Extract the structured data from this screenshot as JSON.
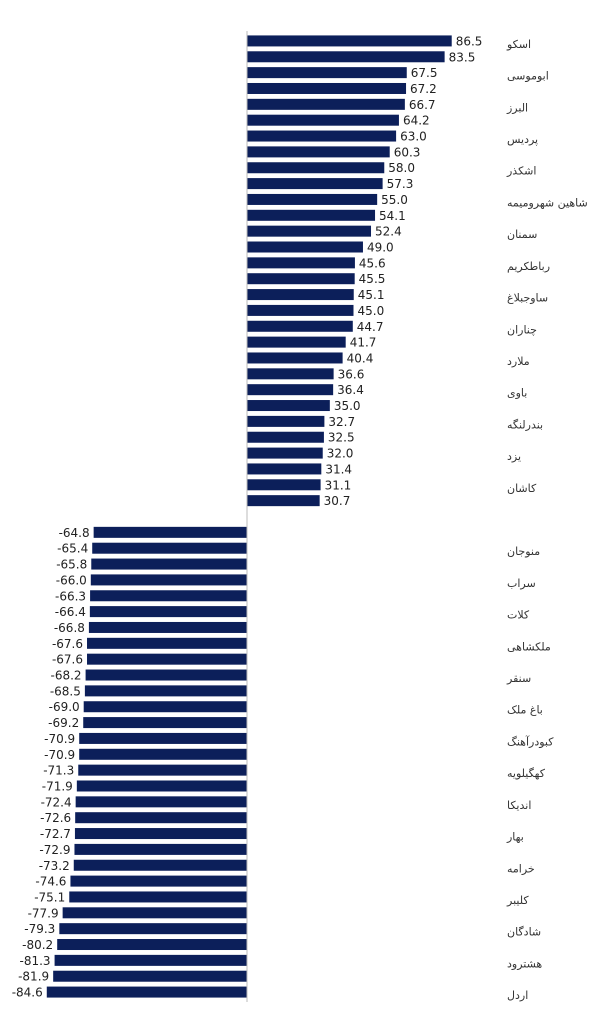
{
  "chart_data": {
    "type": "hbar",
    "categories": [
      "اسکو",
      null,
      "ابوموسی",
      null,
      "البرز",
      null,
      "پردیس",
      null,
      "اشکذر",
      null,
      "شاهین شهرومیمه",
      null,
      "سمنان",
      null,
      "رباطکریم",
      null,
      "ساوجبلاغ",
      null,
      "چناران",
      null,
      "ملارد",
      null,
      "باوی",
      null,
      "بندرلنگه",
      null,
      "یزد",
      null,
      "کاشان",
      null,
      null,
      null,
      "منوجان",
      null,
      "سراب",
      null,
      "کلات",
      null,
      "ملکشاهی",
      null,
      "سنقر",
      null,
      "باغ ملک",
      null,
      "کبودرآهنگ",
      null,
      "کهگیلویه",
      null,
      "اندیکا",
      null,
      "بهار",
      null,
      "خرامه",
      null,
      "کلیبر",
      null,
      "شادگان",
      null,
      "هشترود",
      null,
      "اردل"
    ],
    "values": [
      86.5,
      83.5,
      67.5,
      67.2,
      66.7,
      64.2,
      63.0,
      60.3,
      58.0,
      57.3,
      55.0,
      54.1,
      52.4,
      49.0,
      45.6,
      45.5,
      45.1,
      45.0,
      44.7,
      41.7,
      40.4,
      36.6,
      36.4,
      35.0,
      32.7,
      32.5,
      32.0,
      31.4,
      31.1,
      30.7,
      null,
      -64.8,
      -65.4,
      -65.8,
      -66.0,
      -66.3,
      -66.4,
      -66.8,
      -67.6,
      -67.6,
      -68.2,
      -68.5,
      -69.0,
      -69.2,
      -70.9,
      -70.9,
      -71.3,
      -71.9,
      -72.4,
      -72.6,
      -72.7,
      -72.9,
      -73.2,
      -74.6,
      -75.1,
      -77.9,
      -79.3,
      -80.2,
      -81.3,
      -81.9,
      -84.6
    ],
    "value_labels": [
      "86.5",
      "83.5",
      "67.5",
      "67.2",
      "66.7",
      "64.2",
      "63.0",
      "60.3",
      "58.0",
      "57.3",
      "55.0",
      "54.1",
      "52.4",
      "49.0",
      "45.6",
      "45.5",
      "45.1",
      "45.0",
      "44.7",
      "41.7",
      "40.4",
      "36.6",
      "36.4",
      "35.0",
      "32.7",
      "32.5",
      "32.0",
      "31.4",
      "31.1",
      "30.7",
      null,
      "-64.8",
      "-65.4",
      "-65.8",
      "-66.0",
      "-66.3",
      "-66.4",
      "-66.8",
      "-67.6",
      "-67.6",
      "-68.2",
      "-68.5",
      "-69.0",
      "-69.2",
      "-70.9",
      "-70.9",
      "-71.3",
      "-71.9",
      "-72.4",
      "-72.6",
      "-72.7",
      "-72.9",
      "-73.2",
      "-74.6",
      "-75.1",
      "-77.9",
      "-79.3",
      "-80.2",
      "-81.3",
      "-81.9",
      "-84.6"
    ],
    "color": "#0c1f5a",
    "xlim": [
      -90,
      90
    ],
    "grid": false
  }
}
